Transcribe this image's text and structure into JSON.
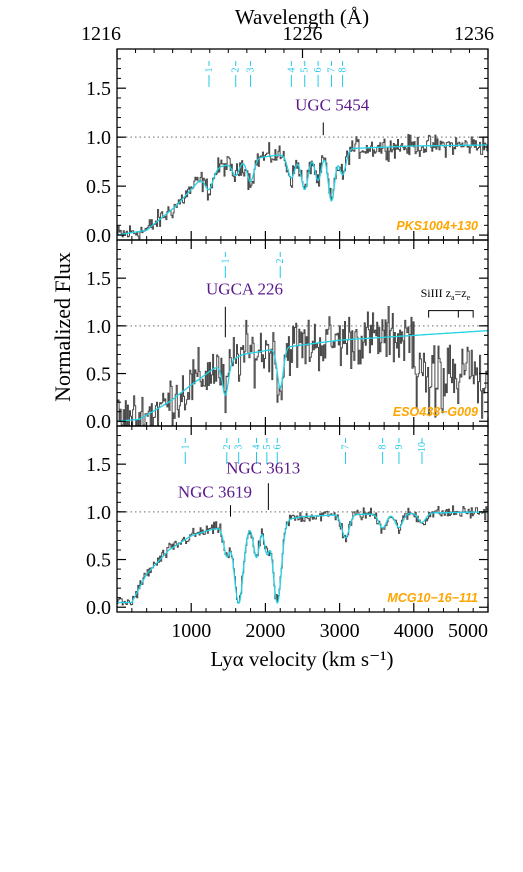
{
  "chart_data": {
    "type": "line",
    "ylabel": "Normalized Flux",
    "xlabel": "Lyα velocity (km s⁻¹)",
    "top_axis": {
      "label": "Wavelength (Å)",
      "ticks": [
        {
          "value": 1216,
          "label": "1216"
        },
        {
          "value": 1226,
          "label": "1226"
        },
        {
          "value": 1236,
          "label": "1236"
        }
      ]
    },
    "xlim": [
      0,
      5000
    ],
    "ylim": [
      -0.05,
      1.9
    ],
    "xticks": [
      {
        "value": 1000,
        "label": "1000"
      },
      {
        "value": 2000,
        "label": "2000"
      },
      {
        "value": 3000,
        "label": "3000"
      },
      {
        "value": 4000,
        "label": "4000"
      },
      {
        "value": 5000,
        "label": "5000"
      }
    ],
    "yticks": [
      {
        "value": 0.0,
        "label": "0.0"
      },
      {
        "value": 0.5,
        "label": "0.5"
      },
      {
        "value": 1.0,
        "label": "1.0"
      },
      {
        "value": 1.5,
        "label": "1.5"
      }
    ],
    "reference_line": 1.0,
    "colors": {
      "data": "#4a4a4a",
      "model": "#22d3e6",
      "line_ticks": "#22c8e8",
      "galaxy_label": "#5a1a8c",
      "sightline_label": "#ffa500",
      "annotation": "#000000"
    },
    "panels": [
      {
        "sightline": "PKS1004+130",
        "galaxies": [
          {
            "label": "UGC 5454",
            "velocity": 2780,
            "tick_top": 1.15,
            "tick_bottom": 1.02,
            "text_x": 2400,
            "text_y": 1.27
          }
        ],
        "line_ids": [
          {
            "label": "1",
            "velocity": 1240
          },
          {
            "label": "2",
            "velocity": 1600
          },
          {
            "label": "3",
            "velocity": 1800
          },
          {
            "label": "4",
            "velocity": 2350
          },
          {
            "label": "5",
            "velocity": 2530
          },
          {
            "label": "6",
            "velocity": 2710
          },
          {
            "label": "7",
            "velocity": 2890
          },
          {
            "label": "8",
            "velocity": 3040
          }
        ],
        "model_profile": {
          "continuum": [
            [
              0,
              0.0
            ],
            [
              400,
              0.05
            ],
            [
              800,
              0.3
            ],
            [
              1100,
              0.55
            ],
            [
              1400,
              0.7
            ],
            [
              1800,
              0.78
            ],
            [
              2400,
              0.84
            ],
            [
              3000,
              0.88
            ],
            [
              4000,
              0.91
            ],
            [
              5000,
              0.92
            ]
          ],
          "absorptions": [
            {
              "v": 1240,
              "depth": 0.25,
              "width": 50
            },
            {
              "v": 1600,
              "depth": 0.18,
              "width": 45
            },
            {
              "v": 1800,
              "depth": 0.3,
              "width": 45
            },
            {
              "v": 2350,
              "depth": 0.3,
              "width": 50
            },
            {
              "v": 2530,
              "depth": 0.45,
              "width": 50
            },
            {
              "v": 2710,
              "depth": 0.35,
              "width": 45
            },
            {
              "v": 2890,
              "depth": 0.6,
              "width": 45
            },
            {
              "v": 3040,
              "depth": 0.3,
              "width": 45
            }
          ]
        },
        "noise": 0.08
      },
      {
        "sightline": "ESO438−G009",
        "galaxies": [
          {
            "label": "UGCA 226",
            "velocity": 1460,
            "tick_top": 1.2,
            "tick_bottom": 0.88,
            "text_x": 1200,
            "text_y": 1.33
          }
        ],
        "annotation": {
          "label": "SiIII z",
          "sub1": "a",
          "mid": "=z",
          "sub2": "e",
          "x1": 4200,
          "x2": 4800,
          "xmid": 4600,
          "y": 1.16,
          "ytext": 1.27
        },
        "line_ids": [
          {
            "label": "1",
            "velocity": 1460
          },
          {
            "label": "2",
            "velocity": 2200
          }
        ],
        "model_profile": {
          "continuum": [
            [
              0,
              0.0
            ],
            [
              300,
              0.02
            ],
            [
              700,
              0.2
            ],
            [
              1000,
              0.38
            ],
            [
              1300,
              0.55
            ],
            [
              1700,
              0.7
            ],
            [
              2300,
              0.78
            ],
            [
              3000,
              0.85
            ],
            [
              4000,
              0.9
            ],
            [
              5000,
              0.95
            ]
          ],
          "absorptions": [
            {
              "v": 1460,
              "depth": 0.55,
              "width": 40
            },
            {
              "v": 2200,
              "depth": 0.55,
              "width": 40
            }
          ]
        },
        "noise": 0.22
      },
      {
        "sightline": "MCG10−16−111",
        "galaxies": [
          {
            "label": "NGC 3619",
            "velocity": 1530,
            "tick_top": 1.07,
            "tick_bottom": 0.95,
            "text_x": 820,
            "text_y": 1.15
          },
          {
            "label": "NGC 3613",
            "velocity": 2040,
            "tick_top": 1.3,
            "tick_bottom": 1.02,
            "text_x": 1470,
            "text_y": 1.4
          }
        ],
        "line_ids": [
          {
            "label": "1",
            "velocity": 920
          },
          {
            "label": "2",
            "velocity": 1480
          },
          {
            "label": "3",
            "velocity": 1640
          },
          {
            "label": "4",
            "velocity": 1880
          },
          {
            "label": "5",
            "velocity": 2020
          },
          {
            "label": "6",
            "velocity": 2160
          },
          {
            "label": "7",
            "velocity": 3080
          },
          {
            "label": "8",
            "velocity": 3580
          },
          {
            "label": "9",
            "velocity": 3800
          },
          {
            "label": "10",
            "velocity": 4110
          }
        ],
        "model_profile": {
          "continuum": [
            [
              0,
              0.05
            ],
            [
              200,
              0.05
            ],
            [
              400,
              0.35
            ],
            [
              700,
              0.6
            ],
            [
              1000,
              0.75
            ],
            [
              1300,
              0.82
            ],
            [
              2000,
              0.88
            ],
            [
              2500,
              0.95
            ],
            [
              3000,
              0.97
            ],
            [
              5000,
              1.0
            ]
          ],
          "absorptions": [
            {
              "v": 1480,
              "depth": 0.35,
              "width": 40
            },
            {
              "v": 1640,
              "depth": 0.95,
              "width": 60
            },
            {
              "v": 1880,
              "depth": 0.4,
              "width": 40
            },
            {
              "v": 2020,
              "depth": 0.35,
              "width": 35
            },
            {
              "v": 2160,
              "depth": 0.95,
              "width": 55
            },
            {
              "v": 3080,
              "depth": 0.25,
              "width": 50
            },
            {
              "v": 3580,
              "depth": 0.15,
              "width": 50
            },
            {
              "v": 3800,
              "depth": 0.15,
              "width": 50
            },
            {
              "v": 4110,
              "depth": 0.1,
              "width": 50
            }
          ]
        },
        "noise": 0.05
      }
    ]
  }
}
